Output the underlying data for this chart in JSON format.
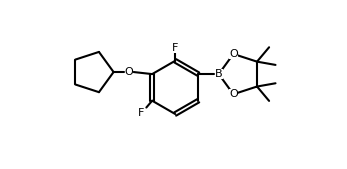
{
  "background_color": "#ffffff",
  "line_color": "#000000",
  "line_width": 1.5,
  "font_size": 7.5,
  "figsize": [
    3.47,
    1.69
  ],
  "dpi": 100,
  "xlim": [
    0,
    10
  ],
  "ylim": [
    0,
    4.87
  ]
}
